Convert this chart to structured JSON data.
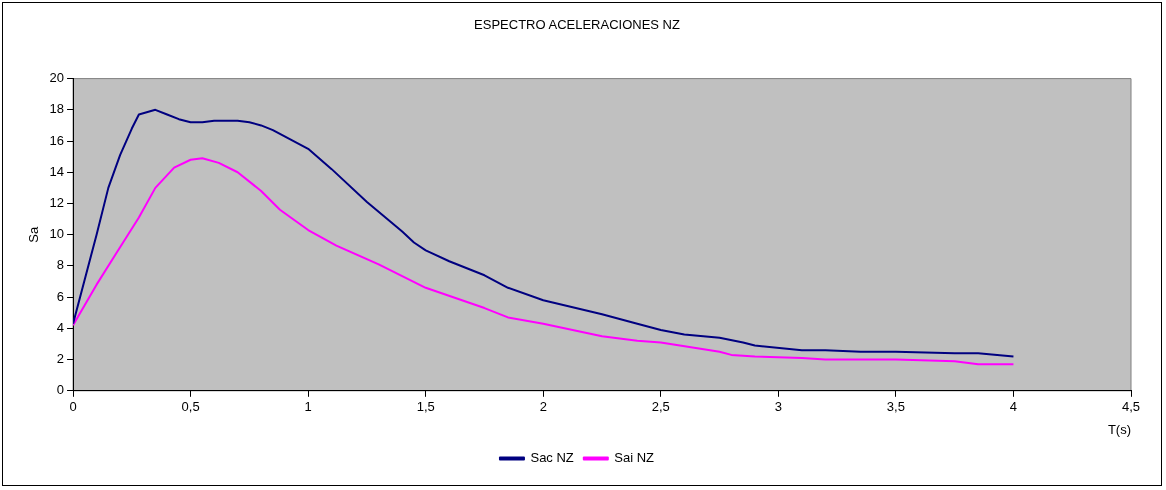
{
  "chart_data": {
    "type": "line",
    "title": "ESPECTRO ACELERACIONES NZ",
    "xlabel": "T(s)",
    "ylabel": "Sa",
    "xlim": [
      0,
      4.5
    ],
    "xticks": [
      0,
      {
        "value": 0.5,
        "label": "0,5"
      },
      1,
      {
        "value": 1.5,
        "label": "1,5"
      },
      2,
      {
        "value": 2.5,
        "label": "2,5"
      },
      3,
      {
        "value": 3.5,
        "label": "3,5"
      },
      4,
      {
        "value": 4.5,
        "label": "4,5"
      }
    ],
    "ylim": [
      0,
      20
    ],
    "yticks": [
      0,
      2,
      4,
      6,
      8,
      10,
      12,
      14,
      16,
      18,
      20
    ],
    "grid": false,
    "legend": "bottom",
    "marker": "none",
    "line_style": "solid",
    "series": [
      {
        "name": "Sac NZ",
        "color": "#000080",
        "x": [
          0,
          0.1,
          0.15,
          0.2,
          0.25,
          0.28,
          0.35,
          0.4,
          0.45,
          0.5,
          0.55,
          0.6,
          0.7,
          0.75,
          0.8,
          0.85,
          0.9,
          1.0,
          1.1,
          1.25,
          1.4,
          1.45,
          1.5,
          1.6,
          1.75,
          1.85,
          2.0,
          2.25,
          2.4,
          2.5,
          2.6,
          2.75,
          2.85,
          2.9,
          3.1,
          3.2,
          3.35,
          3.5,
          3.75,
          3.85,
          4.0
        ],
        "values": [
          4.3,
          10,
          13,
          15.1,
          16.8,
          17.7,
          18.0,
          17.7,
          17.4,
          17.2,
          17.2,
          17.3,
          17.3,
          17.2,
          17.0,
          16.7,
          16.3,
          15.5,
          14.2,
          12.1,
          10.2,
          9.5,
          9.0,
          8.3,
          7.4,
          6.6,
          5.8,
          4.9,
          4.3,
          3.9,
          3.6,
          3.4,
          3.1,
          2.9,
          2.6,
          2.6,
          2.5,
          2.5,
          2.4,
          2.4,
          2.2
        ]
      },
      {
        "name": "Sai NZ",
        "color": "#ff00ff",
        "x": [
          0,
          0.1,
          0.2,
          0.28,
          0.35,
          0.43,
          0.5,
          0.55,
          0.62,
          0.7,
          0.8,
          0.88,
          1.0,
          1.12,
          1.3,
          1.5,
          1.75,
          1.85,
          2.0,
          2.25,
          2.4,
          2.5,
          2.75,
          2.8,
          2.9,
          3.1,
          3.2,
          3.5,
          3.75,
          3.85,
          4.0
        ],
        "values": [
          4.2,
          6.8,
          9.2,
          11.1,
          13.0,
          14.3,
          14.8,
          14.9,
          14.6,
          14.0,
          12.8,
          11.6,
          10.3,
          9.3,
          8.1,
          6.6,
          5.3,
          4.7,
          4.3,
          3.5,
          3.2,
          3.1,
          2.5,
          2.3,
          2.2,
          2.1,
          2.0,
          2.0,
          1.9,
          1.7,
          1.7
        ]
      }
    ]
  }
}
